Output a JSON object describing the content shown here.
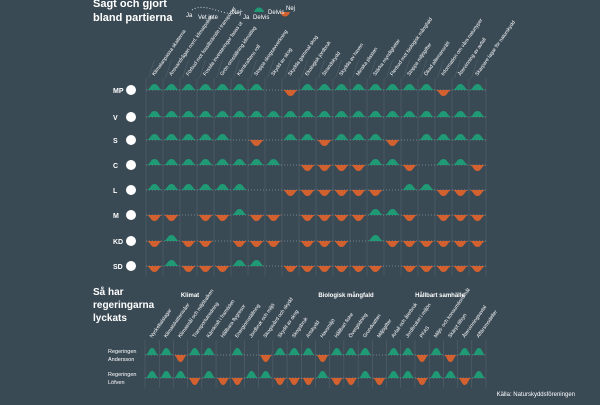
{
  "title": [
    "Sagt och gjort",
    "bland partierna"
  ],
  "legend": {
    "said": {
      "ja": "Ja",
      "vet_inte": "Vet inte",
      "nej": "Nej"
    },
    "done": {
      "ja": "Ja",
      "delvis_green": "Delvis",
      "delvis_red": "Delvis",
      "nej": "Nej"
    }
  },
  "colors": {
    "background": "#3a4a55",
    "positive": "#1f9a74",
    "negative": "#d3612f",
    "dotted": "#c8d2d8",
    "grid": "#57666f"
  },
  "chart_data": [
    {
      "type": "area",
      "title": "Sagt och gjort bland partierna",
      "categories": [
        "Klimatanpassa skatterna",
        "Ansvarsfrågan norrl. klimatpolitik",
        "Förbud mot fossilbränsle i transporter",
        "Fossila investeringar fasas ut",
        "Grön omställning klimatlag",
        "Kärnkraftens roll",
        "Stoppa skogsavverkning",
        "Skydd av skog",
        "Skydda gammal skog",
        "Ekologisk jordbruk",
        "Strandskydd",
        "Skydda av haven",
        "Minska plasten",
        "Stärka myndigheter",
        "Flerbud mot biologisk mångfald",
        "Stoppa miljögifter",
        "Ökad allemansrätt",
        "Information om våra naturtyper",
        "Återvinning av avfall",
        "Skarpare lagar för naturskydd"
      ],
      "parties": [
        "MP",
        "V",
        "S",
        "C",
        "L",
        "M",
        "KD",
        "SD"
      ],
      "series": [
        {
          "name": "MP",
          "values": [
            1,
            1,
            1,
            1,
            1,
            1,
            1,
            0,
            -1,
            1,
            1,
            1,
            1,
            1,
            1,
            1,
            1,
            -1,
            1,
            1
          ],
          "icon": "mp-icon"
        },
        {
          "name": "V",
          "values": [
            1,
            1,
            1,
            1,
            1,
            1,
            1,
            1,
            1,
            1,
            1,
            1,
            1,
            1,
            1,
            1,
            1,
            1,
            1,
            1
          ],
          "icon": "v-icon"
        },
        {
          "name": "S",
          "values": [
            1,
            1,
            1,
            1,
            1,
            0,
            -1,
            0,
            1,
            1,
            -1,
            1,
            1,
            1,
            -1,
            0,
            1,
            1,
            1,
            1
          ],
          "icon": "s-icon"
        },
        {
          "name": "C",
          "values": [
            1,
            1,
            1,
            1,
            1,
            1,
            1,
            1,
            0,
            -1,
            -1,
            -1,
            -1,
            1,
            1,
            -1,
            0,
            1,
            1,
            -1
          ],
          "icon": "c-icon"
        },
        {
          "name": "L",
          "values": [
            1,
            1,
            1,
            1,
            1,
            1,
            0,
            0,
            -1,
            -1,
            -1,
            -1,
            -1,
            -1,
            0,
            1,
            1,
            -1,
            -1,
            -1
          ],
          "icon": "l-icon"
        },
        {
          "name": "M",
          "values": [
            -1,
            -1,
            0,
            -1,
            -1,
            1,
            -1,
            -1,
            0,
            -1,
            -1,
            -1,
            -1,
            1,
            1,
            -1,
            0,
            -1,
            -1,
            -1
          ],
          "icon": "m-icon"
        },
        {
          "name": "KD",
          "values": [
            -1,
            1,
            -1,
            -1,
            0,
            -1,
            -1,
            -1,
            0,
            -1,
            -1,
            -1,
            0,
            1,
            -1,
            -1,
            -1,
            -1,
            -1,
            -1
          ],
          "icon": "kd-icon"
        },
        {
          "name": "SD",
          "values": [
            -1,
            1,
            -1,
            -1,
            -1,
            1,
            1,
            0,
            -1,
            -1,
            -1,
            -1,
            -1,
            -1,
            0,
            -1,
            -1,
            -1,
            -1,
            -1
          ],
          "icon": "sd-icon"
        }
      ]
    },
    {
      "type": "area",
      "title": "Så har regeringarna lyckats",
      "section_labels": [
        "Klimat",
        "Biologisk mångfald",
        "Hållbart samhälle"
      ],
      "categories": [
        "Nyckeltalslagar",
        "Klimatskattenivåer",
        "Klimatmål och miljöbalken",
        "Transportutredning",
        "Kärnkraft i framtiden",
        "Hållbara flygresor",
        "Energiomställning",
        "Jordbruk och miljö",
        "Skogsvård och skydd",
        "Skydd av skog",
        "Skogsbruk",
        "Artskydd",
        "Havsmiljö",
        "Hållbart fiske",
        "Övergödning",
        "Grundvatten",
        "Miljögifter",
        "Avfall och återbruk",
        "Jordbruket i miljön",
        "PFAS",
        "Miljö- och konsumtionsmål",
        "Skärpt tillsyn",
        "Återvinningsavtal",
        "Affärsmodeller"
      ],
      "series": [
        {
          "name": "Regeringen Andersson",
          "values": [
            1,
            1,
            -1,
            1,
            1,
            0,
            1,
            0,
            -1,
            1,
            1,
            1,
            -1,
            1,
            1,
            1,
            0,
            1,
            1,
            -1,
            1,
            -1,
            1,
            1
          ]
        },
        {
          "name": "Regeringen Löfven",
          "values": [
            1,
            1,
            1,
            -1,
            1,
            -1,
            -1,
            1,
            1,
            -1,
            -1,
            -1,
            1,
            -1,
            -1,
            1,
            -1,
            1,
            1,
            -1,
            1,
            1,
            -1,
            1
          ]
        }
      ]
    }
  ],
  "bottom_title": [
    "Så har",
    "regeringarna",
    "lyckats"
  ],
  "source": "Källa: Naturskyddsföreningen"
}
